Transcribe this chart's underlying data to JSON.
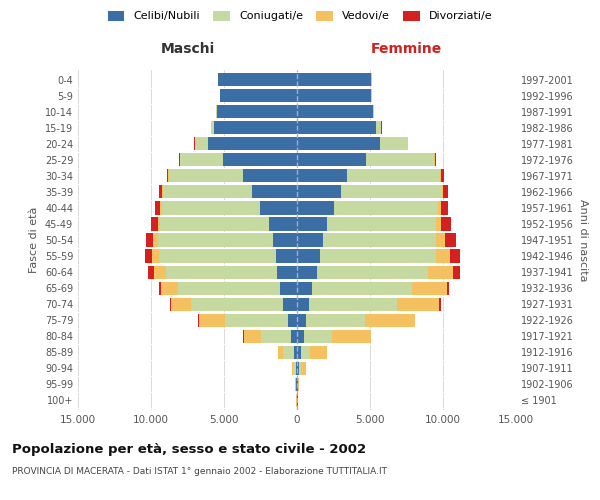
{
  "age_groups": [
    "100+",
    "95-99",
    "90-94",
    "85-89",
    "80-84",
    "75-79",
    "70-74",
    "65-69",
    "60-64",
    "55-59",
    "50-54",
    "45-49",
    "40-44",
    "35-39",
    "30-34",
    "25-29",
    "20-24",
    "15-19",
    "10-14",
    "5-9",
    "0-4"
  ],
  "birth_years": [
    "≤ 1901",
    "1902-1906",
    "1907-1911",
    "1912-1916",
    "1917-1921",
    "1922-1926",
    "1927-1931",
    "1932-1936",
    "1937-1941",
    "1942-1946",
    "1947-1951",
    "1952-1956",
    "1957-1961",
    "1962-1966",
    "1967-1971",
    "1972-1976",
    "1977-1981",
    "1982-1986",
    "1987-1991",
    "1992-1996",
    "1997-2001"
  ],
  "males": {
    "celibi": [
      20,
      55,
      90,
      180,
      380,
      650,
      950,
      1150,
      1350,
      1450,
      1650,
      1950,
      2550,
      3100,
      3700,
      5100,
      6100,
      5700,
      5500,
      5300,
      5400
    ],
    "coniugati": [
      10,
      35,
      180,
      750,
      2100,
      4300,
      6300,
      7000,
      7600,
      8000,
      7900,
      7400,
      6700,
      6100,
      5100,
      2900,
      900,
      180,
      25,
      5,
      2
    ],
    "vedovi": [
      5,
      18,
      90,
      380,
      1150,
      1750,
      1350,
      1150,
      850,
      480,
      280,
      180,
      130,
      70,
      45,
      25,
      8,
      4,
      2,
      1,
      1
    ],
    "divorziati": [
      1,
      4,
      8,
      18,
      35,
      55,
      75,
      180,
      380,
      480,
      530,
      480,
      330,
      180,
      90,
      45,
      18,
      4,
      2,
      1,
      1
    ]
  },
  "females": {
    "nubili": [
      18,
      70,
      130,
      270,
      470,
      650,
      850,
      1050,
      1350,
      1550,
      1750,
      2050,
      2550,
      3000,
      3400,
      4700,
      5700,
      5400,
      5200,
      5100,
      5100
    ],
    "coniugate": [
      8,
      25,
      130,
      650,
      1900,
      4000,
      6000,
      6800,
      7600,
      8000,
      7800,
      7500,
      7100,
      6900,
      6400,
      4700,
      1900,
      380,
      45,
      5,
      2
    ],
    "vedove": [
      8,
      70,
      370,
      1150,
      2700,
      3400,
      2900,
      2400,
      1750,
      950,
      570,
      330,
      180,
      90,
      55,
      25,
      12,
      4,
      2,
      1,
      1
    ],
    "divorziate": [
      1,
      4,
      8,
      18,
      25,
      55,
      90,
      180,
      480,
      680,
      780,
      680,
      530,
      380,
      180,
      70,
      22,
      4,
      2,
      1,
      1
    ]
  },
  "colors": {
    "celibi": "#3b6ea5",
    "coniugati": "#c5d9a0",
    "vedovi": "#f5c060",
    "divorziati": "#d42020"
  },
  "xlim": 15000,
  "title": "Popolazione per età, sesso e stato civile - 2002",
  "subtitle": "PROVINCIA DI MACERATA - Dati ISTAT 1° gennaio 2002 - Elaborazione TUTTITALIA.IT",
  "xlabel_left": "Maschi",
  "xlabel_right": "Femmine",
  "ylabel_left": "Fasce di età",
  "ylabel_right": "Anni di nascita",
  "legend_labels": [
    "Celibi/Nubili",
    "Coniugati/e",
    "Vedovi/e",
    "Divorziati/e"
  ],
  "tick_labels": [
    "15.000",
    "10.000",
    "5.000",
    "0",
    "5.000",
    "10.000",
    "15.000"
  ],
  "background_color": "#ffffff",
  "grid_color": "#cccccc"
}
